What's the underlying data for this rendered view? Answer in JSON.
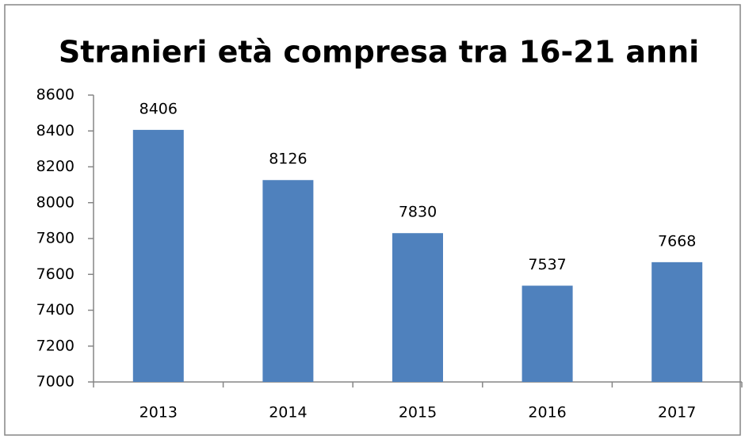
{
  "chart_data": {
    "type": "bar",
    "title": "Stranieri età compresa tra 16-21 anni",
    "categories": [
      "2013",
      "2014",
      "2015",
      "2016",
      "2017"
    ],
    "values": [
      8406,
      8126,
      7830,
      7537,
      7668
    ],
    "color": "#4f81bd",
    "ylim": [
      7000,
      8600
    ],
    "yticks": [
      7000,
      7200,
      7400,
      7600,
      7800,
      8000,
      8200,
      8400,
      8600
    ]
  }
}
